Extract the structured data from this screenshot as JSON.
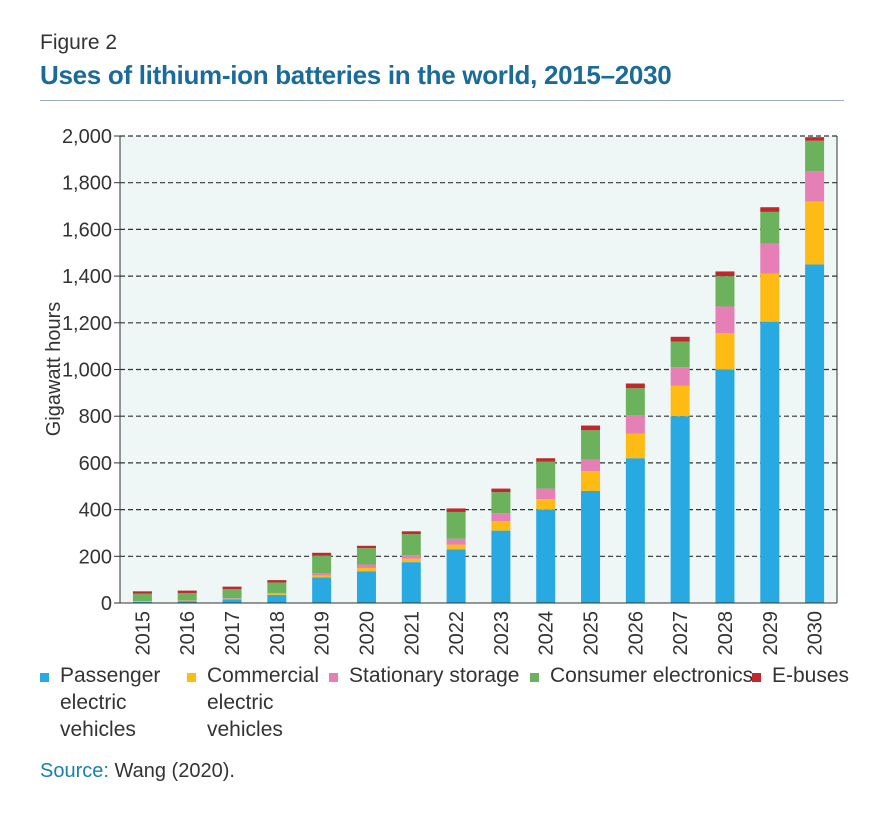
{
  "figure": {
    "label": "Figure 2",
    "title": "Uses of lithium-ion batteries in the world, 2015–2030",
    "source_label": "Source:",
    "source_text": " Wang (2020)."
  },
  "legend": [
    {
      "text": "Passenger\nelectric\nvehicles",
      "color": "#29a9e1"
    },
    {
      "text": "Commercial\nelectric\nvehicles",
      "color": "#fdbb13"
    },
    {
      "text": "Stationary storage",
      "color": "#e57fb5"
    },
    {
      "text": "Consumer electronics",
      "color": "#6cb25c"
    },
    {
      "text": "E-buses",
      "color": "#c1272d"
    }
  ],
  "chart_data": {
    "type": "bar",
    "stacked": true,
    "ylabel": "Gigawatt hours",
    "ylim": [
      0,
      2000
    ],
    "yticks": [
      "0",
      "200",
      "400",
      "600",
      "800",
      "1,000",
      "1,200",
      "1,400",
      "1,600",
      "1,800",
      "2,000"
    ],
    "grid": "horizontal dashed",
    "plot_background": "#eef6f6",
    "categories": [
      "2015",
      "2016",
      "2017",
      "2018",
      "2019",
      "2020",
      "2021",
      "2022",
      "2023",
      "2024",
      "2025",
      "2026",
      "2027",
      "2028",
      "2029",
      "2030"
    ],
    "series": [
      {
        "name": "Passenger electric vehicles",
        "color": "#29a9e1",
        "values": [
          5,
          8,
          15,
          35,
          110,
          135,
          175,
          230,
          310,
          400,
          480,
          620,
          800,
          1000,
          1205,
          1450
        ]
      },
      {
        "name": "Commercial electric vehicles",
        "color": "#fdbb13",
        "values": [
          2,
          2,
          3,
          5,
          8,
          15,
          15,
          20,
          40,
          45,
          85,
          105,
          130,
          155,
          205,
          270
        ]
      },
      {
        "name": "Stationary storage",
        "color": "#e57fb5",
        "values": [
          1,
          1,
          2,
          3,
          10,
          15,
          15,
          25,
          35,
          45,
          50,
          80,
          80,
          115,
          130,
          130
        ]
      },
      {
        "name": "Consumer electronics",
        "color": "#6cb25c",
        "values": [
          32,
          32,
          40,
          45,
          75,
          70,
          90,
          115,
          90,
          115,
          125,
          115,
          110,
          130,
          135,
          130
        ]
      },
      {
        "name": "E-buses",
        "color": "#c1272d",
        "values": [
          10,
          10,
          10,
          10,
          12,
          10,
          12,
          15,
          15,
          15,
          20,
          20,
          20,
          20,
          20,
          15
        ]
      }
    ]
  }
}
